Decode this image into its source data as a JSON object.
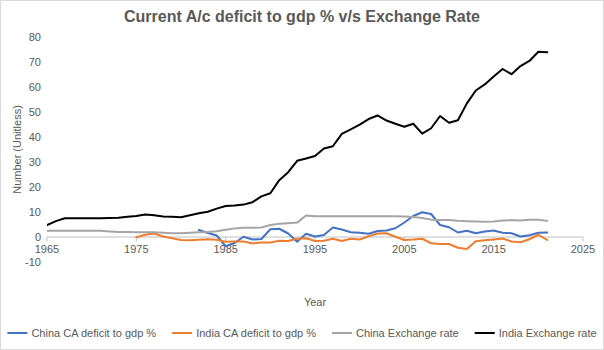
{
  "chart_data": {
    "type": "line",
    "title": "Current A/c deficit to gdp % v/s Exchange Rate",
    "x_label": "Year",
    "y_label": "Number (Unitless)",
    "x": [
      1965,
      1966,
      1967,
      1968,
      1969,
      1970,
      1971,
      1972,
      1973,
      1974,
      1975,
      1976,
      1977,
      1978,
      1979,
      1980,
      1981,
      1982,
      1983,
      1984,
      1985,
      1986,
      1987,
      1988,
      1989,
      1990,
      1991,
      1992,
      1993,
      1994,
      1995,
      1996,
      1997,
      1998,
      1999,
      2000,
      2001,
      2002,
      2003,
      2004,
      2005,
      2006,
      2007,
      2008,
      2009,
      2010,
      2011,
      2012,
      2013,
      2014,
      2015,
      2016,
      2017,
      2018,
      2019,
      2020,
      2021
    ],
    "xlim": [
      1965,
      2025
    ],
    "xticks": [
      1965,
      1975,
      1985,
      1995,
      2005,
      2015,
      2025
    ],
    "ylim": [
      -10,
      80
    ],
    "yticks": [
      -10,
      0,
      10,
      20,
      30,
      40,
      50,
      60,
      70,
      80
    ],
    "grid": false,
    "legend": "bottom",
    "series": [
      {
        "name": "China CA deficit to gdp %",
        "color": "#4472c4",
        "values": [
          null,
          null,
          null,
          null,
          null,
          null,
          null,
          null,
          null,
          null,
          null,
          null,
          null,
          null,
          null,
          null,
          null,
          2.8,
          1.6,
          0.6,
          -3.7,
          -2.4,
          0.1,
          -1.0,
          -0.8,
          3.1,
          3.3,
          1.4,
          -1.9,
          1.3,
          0.2,
          0.8,
          3.8,
          3.0,
          1.9,
          1.7,
          1.3,
          2.4,
          2.6,
          3.5,
          5.8,
          8.4,
          9.9,
          9.2,
          4.8,
          3.9,
          1.8,
          2.5,
          1.5,
          2.2,
          2.6,
          1.7,
          1.5,
          0.2,
          0.7,
          1.7,
          1.8
        ]
      },
      {
        "name": "India CA deficit to gdp %",
        "color": "#ed7d31",
        "values": [
          null,
          null,
          null,
          null,
          null,
          null,
          null,
          null,
          null,
          null,
          -0.1,
          0.9,
          1.4,
          0.2,
          -0.5,
          -1.2,
          -1.3,
          -1.1,
          -0.9,
          -1.1,
          -1.9,
          -1.8,
          -1.8,
          -2.6,
          -2.2,
          -2.2,
          -1.5,
          -1.6,
          -0.7,
          -0.5,
          -1.6,
          -1.5,
          -0.7,
          -1.6,
          -0.7,
          -1.0,
          0.3,
          1.4,
          1.5,
          0.1,
          -1.2,
          -1.0,
          -0.7,
          -2.5,
          -2.8,
          -2.8,
          -4.3,
          -4.8,
          -1.7,
          -1.3,
          -1.0,
          -0.6,
          -1.8,
          -2.1,
          -0.9,
          0.9,
          -1.2
        ]
      },
      {
        "name": "China Exchange rate",
        "color": "#a5a5a5",
        "values": [
          2.46,
          2.46,
          2.46,
          2.46,
          2.46,
          2.46,
          2.46,
          2.25,
          1.99,
          1.96,
          1.86,
          1.94,
          1.86,
          1.68,
          1.55,
          1.5,
          1.7,
          1.89,
          1.98,
          2.32,
          2.94,
          3.45,
          3.72,
          3.72,
          3.77,
          4.78,
          5.32,
          5.51,
          5.76,
          8.62,
          8.35,
          8.31,
          8.28,
          8.28,
          8.28,
          8.28,
          8.28,
          8.28,
          8.28,
          8.28,
          8.19,
          7.97,
          7.61,
          6.95,
          6.83,
          6.77,
          6.46,
          6.31,
          6.2,
          6.14,
          6.23,
          6.64,
          6.76,
          6.62,
          6.91,
          6.9,
          6.45
        ]
      },
      {
        "name": "India Exchange rate",
        "color": "#000000",
        "values": [
          4.76,
          6.36,
          7.5,
          7.5,
          7.5,
          7.5,
          7.49,
          7.59,
          7.74,
          8.1,
          8.38,
          8.96,
          8.74,
          8.19,
          8.13,
          7.86,
          8.66,
          9.46,
          10.1,
          11.36,
          12.37,
          12.61,
          12.96,
          13.92,
          16.23,
          17.5,
          22.74,
          25.92,
          30.49,
          31.37,
          32.43,
          35.43,
          36.31,
          41.26,
          43.06,
          44.94,
          47.19,
          48.61,
          46.58,
          45.32,
          44.1,
          45.31,
          41.35,
          43.5,
          48.41,
          45.73,
          46.67,
          53.44,
          58.6,
          61.03,
          64.15,
          67.2,
          65.12,
          68.39,
          70.42,
          74.1,
          73.9
        ]
      }
    ]
  }
}
